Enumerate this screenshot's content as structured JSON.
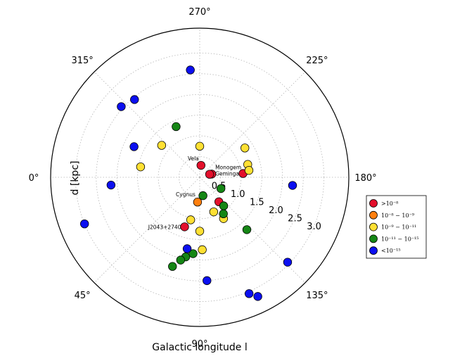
{
  "chart_data": {
    "type": "scatter",
    "projection": "polar",
    "xlabel": "Galactic longitude l",
    "ylabel": "d [kpc]",
    "angle_ticks": [
      {
        "deg": 0,
        "label": "0°"
      },
      {
        "deg": 45,
        "label": "45°"
      },
      {
        "deg": 90,
        "label": "90°"
      },
      {
        "deg": 135,
        "label": "135°"
      },
      {
        "deg": 180,
        "label": "180°"
      },
      {
        "deg": 225,
        "label": "225°"
      },
      {
        "deg": 270,
        "label": "270°"
      },
      {
        "deg": 315,
        "label": "315°"
      }
    ],
    "radial_ticks": [
      {
        "r": 0.5,
        "label": "0.5"
      },
      {
        "r": 1.0,
        "label": "1.0"
      },
      {
        "r": 1.5,
        "label": "1.5"
      },
      {
        "r": 2.0,
        "label": "2.0"
      },
      {
        "r": 2.5,
        "label": "2.5"
      },
      {
        "r": 3.0,
        "label": "3.0"
      }
    ],
    "rlim": [
      0,
      3.6
    ],
    "grid": true,
    "legend_position": "right",
    "series": [
      {
        "name": ">10⁻⁸",
        "color": "#e3102c",
        "points": [
          {
            "l": 264,
            "d": 0.29
          },
          {
            "l": 195,
            "d": 0.3
          },
          {
            "l": 197,
            "d": 0.25
          },
          {
            "l": 185,
            "d": 1.05
          },
          {
            "l": 128,
            "d": 0.75
          },
          {
            "l": 73,
            "d": 1.25
          }
        ]
      },
      {
        "name": "10⁻⁸ − 10⁻⁹",
        "color": "#ff7f0e",
        "points": [
          {
            "l": 85,
            "d": 0.6
          }
        ]
      },
      {
        "name": "10⁻⁹ − 10⁻¹¹",
        "color": "#ffe033",
        "points": [
          {
            "l": 270,
            "d": 0.75
          },
          {
            "l": 320,
            "d": 1.2
          },
          {
            "l": 350,
            "d": 1.45
          },
          {
            "l": 90,
            "d": 1.3
          },
          {
            "l": 78,
            "d": 1.05
          },
          {
            "l": 213,
            "d": 1.3
          },
          {
            "l": 195,
            "d": 1.2
          },
          {
            "l": 188,
            "d": 1.2
          },
          {
            "l": 112,
            "d": 0.9
          },
          {
            "l": 120,
            "d": 1.15
          },
          {
            "l": 92,
            "d": 1.75
          }
        ]
      },
      {
        "name": "10⁻¹¹ − 10⁻¹⁵",
        "color": "#158615",
        "points": [
          {
            "l": 295,
            "d": 1.35
          },
          {
            "l": 152,
            "d": 0.58
          },
          {
            "l": 130,
            "d": 0.9
          },
          {
            "l": 100,
            "d": 0.45
          },
          {
            "l": 123,
            "d": 1.05
          },
          {
            "l": 132,
            "d": 1.7
          },
          {
            "l": 80,
            "d": 1.95
          },
          {
            "l": 85,
            "d": 1.85
          },
          {
            "l": 77,
            "d": 2.05
          },
          {
            "l": 73,
            "d": 2.25
          }
        ]
      },
      {
        "name": "<10⁻¹⁵",
        "color": "#0b0ff0",
        "points": [
          {
            "l": 275,
            "d": 2.6
          },
          {
            "l": 310,
            "d": 2.45
          },
          {
            "l": 318,
            "d": 2.55
          },
          {
            "l": 335,
            "d": 1.75
          },
          {
            "l": 5,
            "d": 2.15
          },
          {
            "l": 22,
            "d": 3.0
          },
          {
            "l": 80,
            "d": 1.75
          },
          {
            "l": 94,
            "d": 2.5
          },
          {
            "l": 113,
            "d": 3.05
          },
          {
            "l": 116,
            "d": 3.2
          },
          {
            "l": 136,
            "d": 2.95
          },
          {
            "l": 175,
            "d": 2.25
          }
        ]
      }
    ],
    "annotations": [
      {
        "text": "Vela",
        "l": 264,
        "d": 0.29
      },
      {
        "text": "Monogem",
        "l": 195,
        "d": 0.3
      },
      {
        "text": "Geminga",
        "l": 197,
        "d": 0.25
      },
      {
        "text": "Cygnus",
        "l": 85,
        "d": 0.6
      },
      {
        "text": "J2043+2740",
        "l": 73,
        "d": 1.25
      }
    ]
  }
}
